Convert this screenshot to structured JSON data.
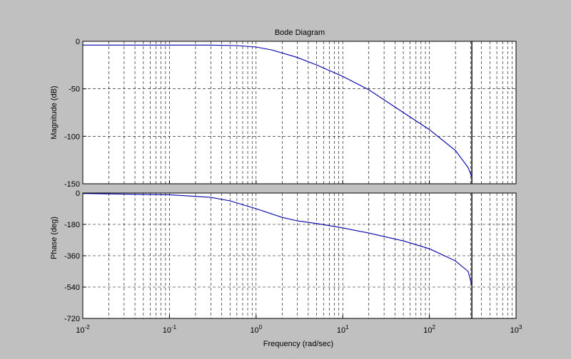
{
  "chart_data": {
    "type": "line",
    "title": "Bode Diagram",
    "xlabel": "Frequency  (rad/sec)",
    "x_scale": "log",
    "xlim": [
      0.01,
      1000
    ],
    "x_tick_labels": [
      {
        "base": "10",
        "exp": "-2"
      },
      {
        "base": "10",
        "exp": "-1"
      },
      {
        "base": "10",
        "exp": "0"
      },
      {
        "base": "10",
        "exp": "1"
      },
      {
        "base": "10",
        "exp": "2"
      },
      {
        "base": "10",
        "exp": "3"
      }
    ],
    "grid": true,
    "vertical_line_x": 309,
    "line_color": "#0000aa",
    "panels": [
      {
        "ylabel": "Magnitude (dB)",
        "ylim": [
          -150,
          0
        ],
        "y_ticks": [
          0,
          -50,
          -100,
          -150
        ],
        "y_tick_labels": [
          "0",
          "-50",
          "-100",
          "-150"
        ],
        "series": [
          {
            "x": [
              0.01,
              0.1,
              0.3,
              0.6,
              1,
              1.5,
              3,
              5,
              10,
              20,
              50,
              100,
              200,
              280,
              309
            ],
            "y": [
              -4,
              -4,
              -4,
              -4.5,
              -6,
              -9,
              -17,
              -25,
              -37,
              -51,
              -75,
              -93,
              -115,
              -133,
              -143
            ]
          }
        ]
      },
      {
        "ylabel": "Phase (deg)",
        "ylim": [
          -720,
          0
        ],
        "y_ticks": [
          0,
          -180,
          -360,
          -540,
          -720
        ],
        "y_tick_labels": [
          "0",
          "-180",
          "-360",
          "-540",
          "-720"
        ],
        "series": [
          {
            "x": [
              0.01,
              0.1,
              0.3,
              0.5,
              1,
              2,
              3,
              5,
              10,
              20,
              50,
              100,
              200,
              280,
              309
            ],
            "y": [
              -3,
              -10,
              -25,
              -45,
              -90,
              -140,
              -160,
              -175,
              -200,
              -230,
              -275,
              -320,
              -390,
              -450,
              -530
            ]
          }
        ]
      }
    ]
  }
}
